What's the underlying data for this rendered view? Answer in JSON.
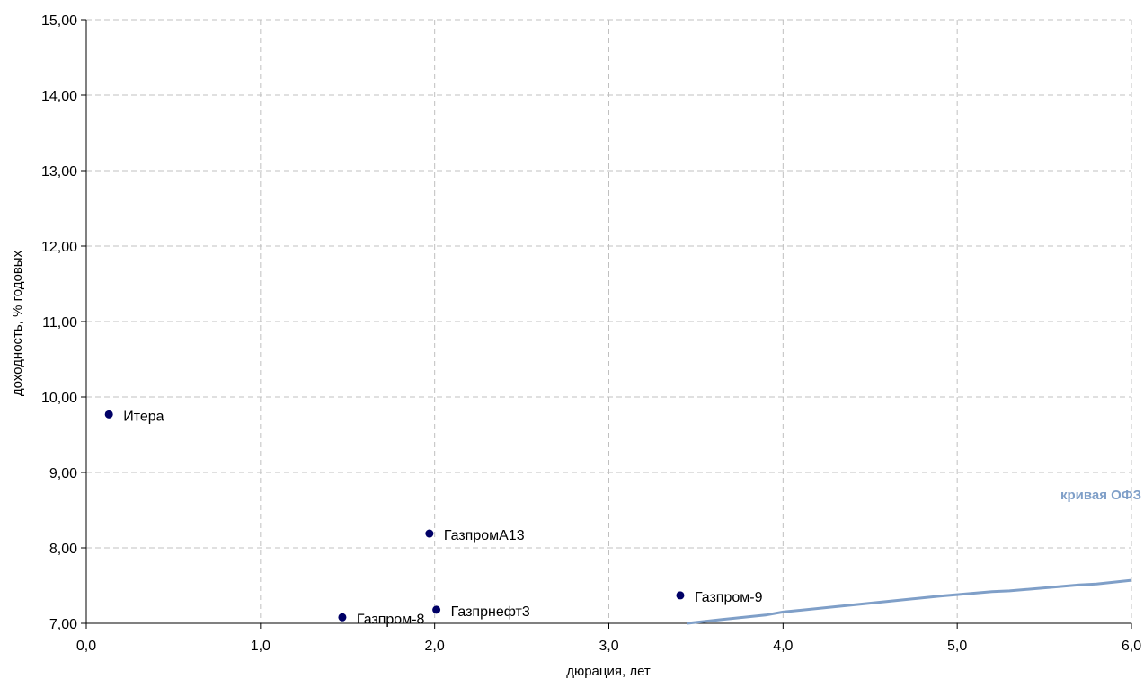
{
  "chart_data": {
    "type": "scatter",
    "xlabel": "дюрация, лет",
    "ylabel": "доходность, % годовых",
    "xlim": [
      0,
      6
    ],
    "ylim": [
      7,
      15
    ],
    "x_ticks": [
      "0,0",
      "1,0",
      "2,0",
      "3,0",
      "4,0",
      "5,0",
      "6,0"
    ],
    "y_ticks": [
      "7,00",
      "8,00",
      "9,00",
      "10,00",
      "11,00",
      "12,00",
      "13,00",
      "14,00",
      "15,00"
    ],
    "grid": true,
    "points": [
      {
        "label": "Итера",
        "x": 0.13,
        "y": 9.77
      },
      {
        "label": "ГазпромА13",
        "x": 1.97,
        "y": 8.19
      },
      {
        "label": "Газпрнефт3",
        "x": 2.01,
        "y": 7.18
      },
      {
        "label": "Газпром-8",
        "x": 1.47,
        "y": 7.08
      },
      {
        "label": "Газпром-9",
        "x": 3.41,
        "y": 7.37
      }
    ],
    "curve": {
      "name": "кривая ОФЗ",
      "color": "#7f9fc8",
      "x": [
        3.45,
        3.65,
        3.9,
        4.0,
        4.3,
        4.6,
        4.9,
        5.2,
        5.3,
        5.7,
        5.8,
        6.0
      ],
      "y": [
        7.0,
        7.05,
        7.11,
        7.15,
        7.22,
        7.29,
        7.36,
        7.42,
        7.43,
        7.51,
        7.52,
        7.57
      ]
    },
    "point_color": "#000066"
  }
}
